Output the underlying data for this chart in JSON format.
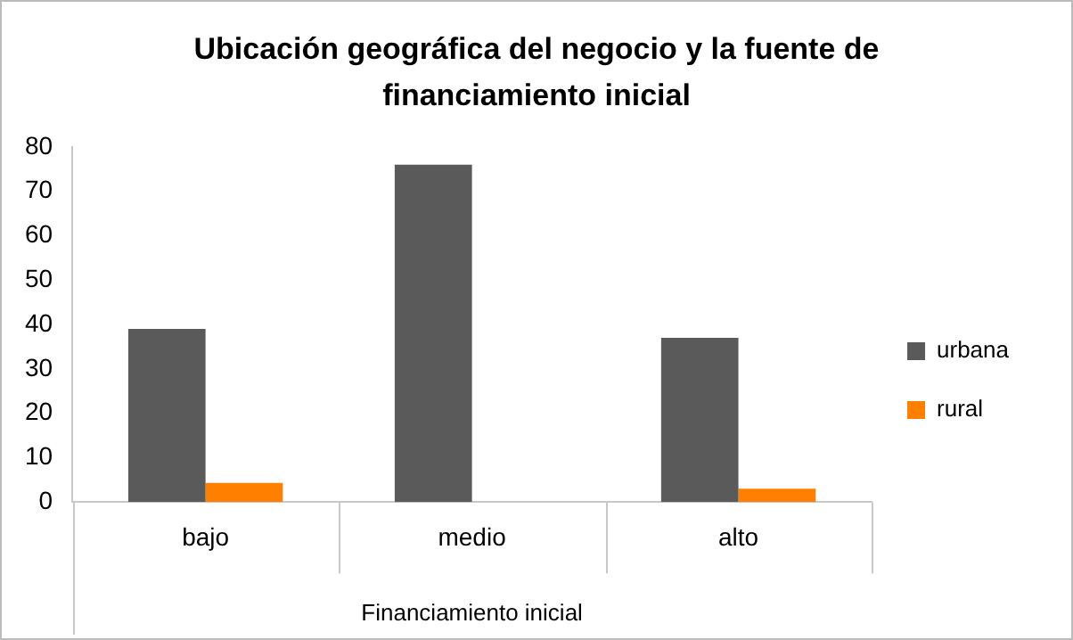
{
  "chart_data": {
    "type": "bar",
    "title": "Ubicación geográfica del negocio y la fuente de financiamiento inicial",
    "xlabel": "Financiamiento inicial",
    "categories": [
      "bajo",
      "medio",
      "alto"
    ],
    "series": [
      {
        "name": "urbana",
        "color": "#5a5a5a",
        "values": [
          39,
          76,
          37
        ]
      },
      {
        "name": "rural",
        "color": "#ff7f00",
        "values": [
          4.3,
          0,
          3
        ]
      }
    ],
    "ylim": [
      0,
      80
    ],
    "yticks": [
      0,
      10,
      20,
      30,
      40,
      50,
      60,
      70,
      80
    ],
    "grid": false,
    "legend": "right"
  }
}
